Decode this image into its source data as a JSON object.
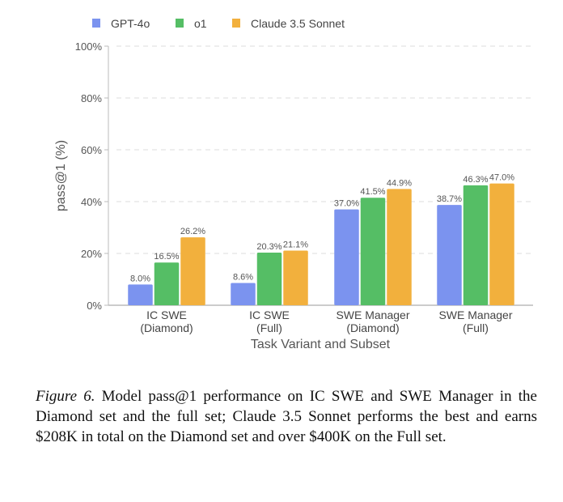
{
  "chart_data": {
    "type": "bar",
    "title": "",
    "xlabel": "Task Variant and Subset",
    "ylabel": "pass@1 (%)",
    "ylim": [
      0,
      100
    ],
    "yticks": [
      "0%",
      "20%",
      "40%",
      "60%",
      "80%",
      "100%"
    ],
    "grid": true,
    "legend_position": "top-left",
    "categories": [
      [
        "IC SWE",
        "(Diamond)"
      ],
      [
        "IC SWE",
        "(Full)"
      ],
      [
        "SWE Manager",
        "(Diamond)"
      ],
      [
        "SWE Manager",
        "(Full)"
      ]
    ],
    "series": [
      {
        "name": "GPT-4o",
        "color": "#7b93ef",
        "values": [
          8.0,
          8.6,
          37.0,
          38.7
        ],
        "labels": [
          "8.0%",
          "8.6%",
          "37.0%",
          "38.7%"
        ]
      },
      {
        "name": "o1",
        "color": "#55be65",
        "values": [
          16.5,
          20.3,
          41.5,
          46.3
        ],
        "labels": [
          "16.5%",
          "20.3%",
          "41.5%",
          "46.3%"
        ]
      },
      {
        "name": "Claude 3.5 Sonnet",
        "color": "#f2b03d",
        "values": [
          26.2,
          21.1,
          44.9,
          47.0
        ],
        "labels": [
          "26.2%",
          "21.1%",
          "44.9%",
          "47.0%"
        ]
      }
    ]
  },
  "caption": {
    "label": "Figure 6.",
    "text": " Model pass@1 performance on IC SWE and SWE Manager in the Diamond set and the full set; Claude 3.5 Sonnet performs the best and earns $208K in total on the Diamond set and over $400K on the Full set."
  }
}
